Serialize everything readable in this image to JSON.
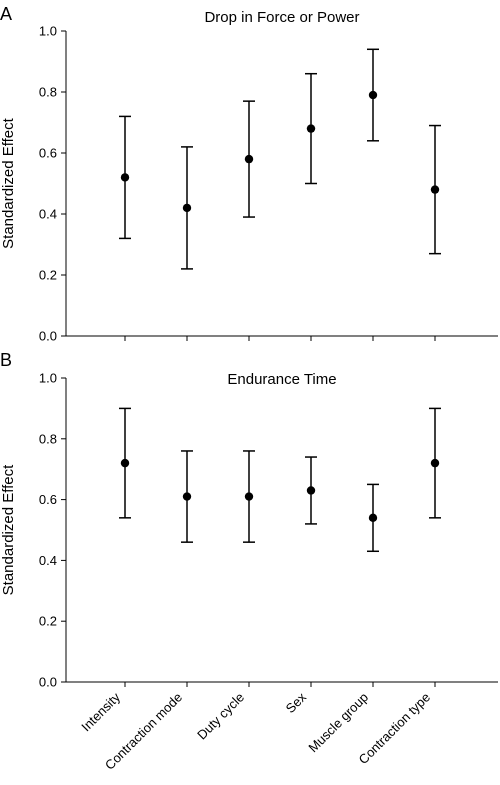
{
  "chart_data": [
    {
      "type": "scatter",
      "panel_label": "A",
      "title": "Drop in Force or Power",
      "ylabel": "Standardized Effect",
      "ylim": [
        0.0,
        1.0
      ],
      "yticks": [
        "0.0",
        "0.2",
        "0.4",
        "0.6",
        "0.8",
        "1.0"
      ],
      "categories": [
        "Intensity",
        "Contraction mode",
        "Duty cycle",
        "Sex",
        "Muscle group",
        "Contraction type"
      ],
      "values": [
        0.52,
        0.42,
        0.58,
        0.68,
        0.79,
        0.48
      ],
      "error_low": [
        0.32,
        0.22,
        0.39,
        0.5,
        0.64,
        0.27
      ],
      "error_high": [
        0.72,
        0.62,
        0.77,
        0.86,
        0.94,
        0.69
      ]
    },
    {
      "type": "scatter",
      "panel_label": "B",
      "title": "Endurance Time",
      "ylabel": "Standardized Effect",
      "ylim": [
        0.0,
        1.0
      ],
      "yticks": [
        "0.0",
        "0.2",
        "0.4",
        "0.6",
        "0.8",
        "1.0"
      ],
      "categories": [
        "Intensity",
        "Contraction mode",
        "Duty cycle",
        "Sex",
        "Muscle group",
        "Contraction type"
      ],
      "values": [
        0.72,
        0.61,
        0.61,
        0.63,
        0.54,
        0.72
      ],
      "error_low": [
        0.54,
        0.46,
        0.46,
        0.52,
        0.43,
        0.54
      ],
      "error_high": [
        0.9,
        0.76,
        0.76,
        0.74,
        0.65,
        0.9
      ]
    }
  ]
}
